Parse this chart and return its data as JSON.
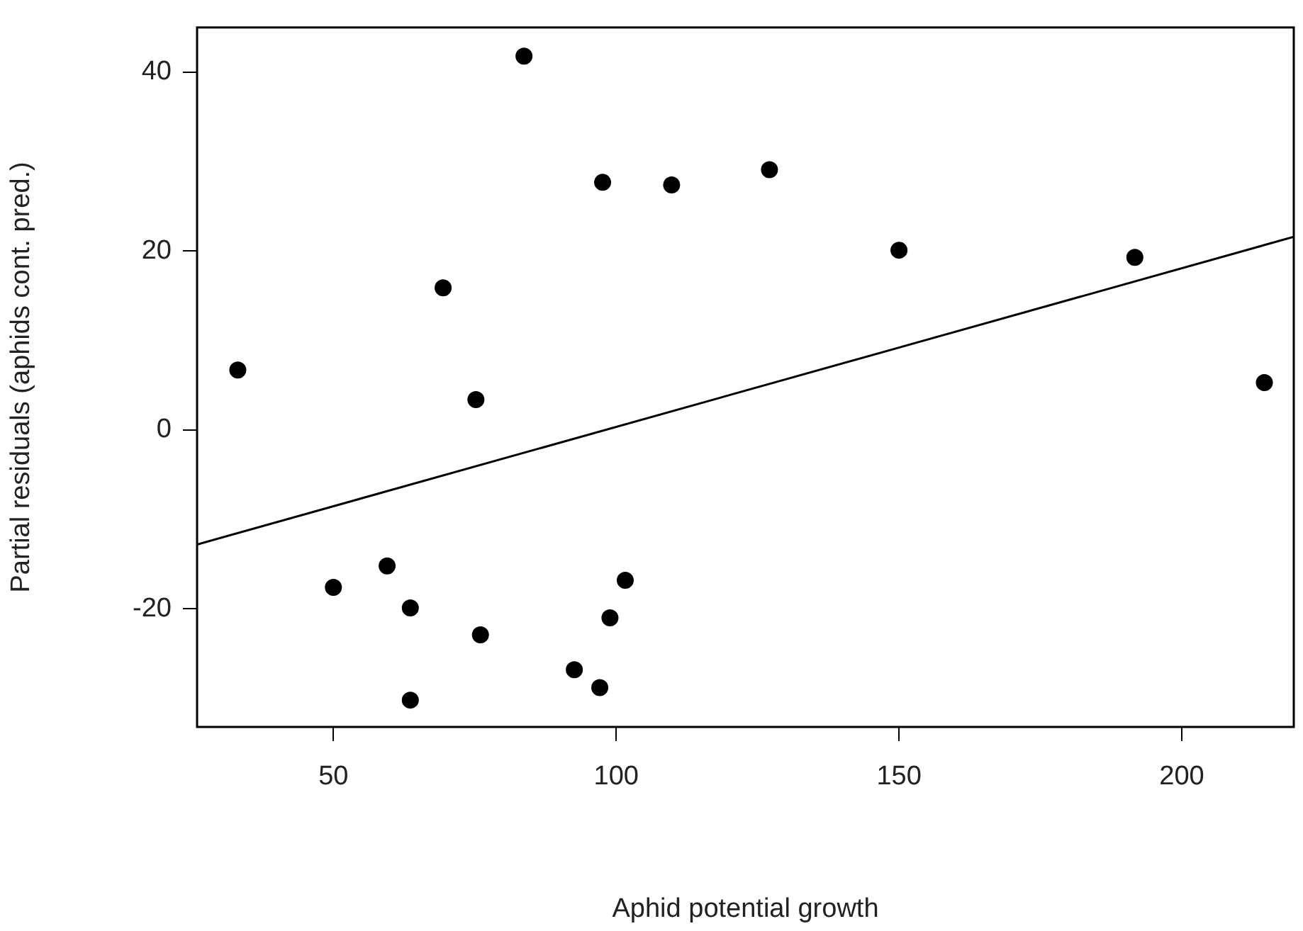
{
  "chart_data": {
    "type": "scatter",
    "xlabel": "Aphid potential growth",
    "ylabel": "Partial residuals (aphids cont. pred.)",
    "x": [
      33.1,
      50,
      59.5,
      63.6,
      63.6,
      69.4,
      75.2,
      76.0,
      83.7,
      92.6,
      97.1,
      97.6,
      98.9,
      101.6,
      109.8,
      127.1,
      150.0,
      191.7,
      214.6
    ],
    "series": [
      {
        "color": "#000000",
        "marker": "circle",
        "values": [
          6.7,
          -17.6,
          -15.2,
          -19.9,
          -30.2,
          15.9,
          3.4,
          -22.9,
          41.8,
          -26.8,
          -28.8,
          27.7,
          -21.0,
          -16.8,
          27.4,
          29.1,
          20.1,
          19.3,
          5.3
        ]
      },
      {
        "type": "line",
        "color": "#000000",
        "marker": "none",
        "line_style": "solid",
        "x": [
          25.9,
          219.8
        ],
        "values": [
          -12.8,
          21.6
        ]
      }
    ],
    "xlim": [
      25.9,
      219.8
    ],
    "ylim": [
      -33.2,
      45.0
    ],
    "xticks": [
      50,
      100,
      150,
      200
    ],
    "yticks": [
      -20,
      0,
      20,
      40
    ],
    "grid": false,
    "legend": false
  }
}
